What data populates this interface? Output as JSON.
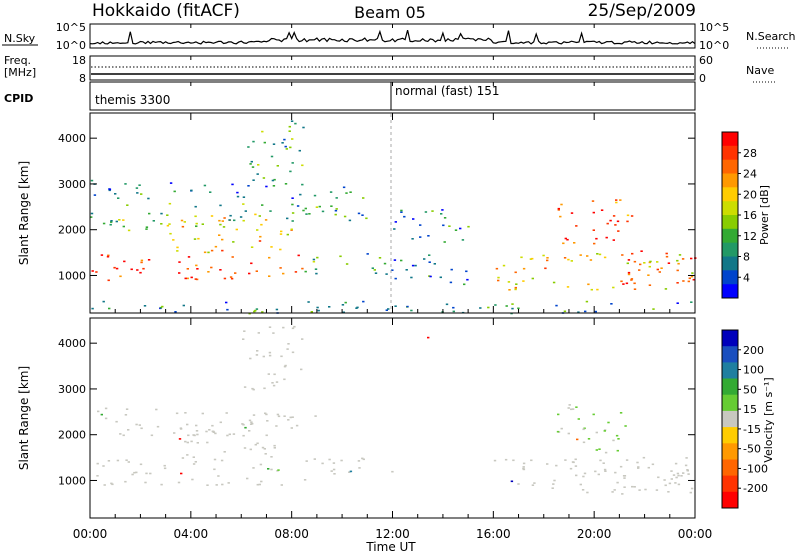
{
  "header": {
    "title_left": "Hokkaido (fitACF)",
    "title_center": "Beam 05",
    "title_right": "25/Sep/2009"
  },
  "panels": {
    "nsky": {
      "label": "N.Sky",
      "ticks_left": [
        "10^5",
        "10^0"
      ],
      "ticks_right": [
        "10^5",
        "10^0"
      ],
      "right_label": "N.Search"
    },
    "freq": {
      "label_line1": "Freq.",
      "label_line2": "[MHz]",
      "ticks_left": [
        "18",
        "8"
      ],
      "ticks_right": [
        "60",
        "0"
      ],
      "right_label": "Nave"
    },
    "cpid": {
      "label": "CPID",
      "segments": [
        "themis 3300",
        "normal (fast) 151"
      ]
    }
  },
  "colorbars": {
    "power": {
      "title": "Power [dB]",
      "ticks": [
        "28",
        "24",
        "20",
        "16",
        "12",
        "8",
        "4"
      ],
      "colors": [
        "#ff0000",
        "#ff3300",
        "#ff6600",
        "#ff9900",
        "#ffcc00",
        "#ccdd00",
        "#88cc00",
        "#33aa33",
        "#229966",
        "#117788",
        "#0044cc",
        "#0000ff"
      ]
    },
    "velocity": {
      "title": "Velocity [m s⁻¹]",
      "ticks": [
        "200",
        "100",
        "50",
        "15",
        "-15",
        "-50",
        "-100",
        "-200"
      ],
      "colors": [
        "#0000bb",
        "#1a4fbf",
        "#1f7fa0",
        "#33aa33",
        "#66cc33",
        "#c8c8c0",
        "#ffcc00",
        "#ff9900",
        "#ff6600",
        "#ff3300",
        "#ff0000"
      ]
    }
  },
  "axes": {
    "y_label": "Slant Range [km]",
    "y_ticks": [
      "4000",
      "3000",
      "2000",
      "1000"
    ],
    "x_label": "Time UT",
    "x_ticks": [
      "00:00",
      "04:00",
      "08:00",
      "12:00",
      "16:00",
      "20:00",
      "00:00"
    ]
  },
  "chart_data": [
    {
      "type": "heatmap",
      "title": "Hokkaido (fitACF) Beam 05 25/Sep/2009",
      "variable": "Power [dB]",
      "xlabel": "Time UT",
      "ylabel": "Slant Range [km]",
      "xlim": [
        0,
        24
      ],
      "ylim": [
        180,
        4550
      ],
      "zlim": [
        0,
        30
      ],
      "regions": [
        {
          "t": [
            0.0,
            8.5
          ],
          "r": [
            900,
            1500
          ],
          "power": 28
        },
        {
          "t": [
            3.0,
            8.0
          ],
          "r": [
            1500,
            2300
          ],
          "power": 20
        },
        {
          "t": [
            0.0,
            9.0
          ],
          "r": [
            2000,
            2600
          ],
          "power": 12
        },
        {
          "t": [
            0.0,
            8.0
          ],
          "r": [
            2700,
            3100
          ],
          "power": 6
        },
        {
          "t": [
            6.0,
            8.5
          ],
          "r": [
            3000,
            4400
          ],
          "power": 10
        },
        {
          "t": [
            8.5,
            12.0
          ],
          "r": [
            1000,
            1500
          ],
          "power": 10
        },
        {
          "t": [
            8.0,
            11.0
          ],
          "r": [
            2200,
            3000
          ],
          "power": 8
        },
        {
          "t": [
            12.0,
            15.0
          ],
          "r": [
            800,
            1500
          ],
          "power": 6
        },
        {
          "t": [
            12.0,
            15.0
          ],
          "r": [
            1700,
            2500
          ],
          "power": 6
        },
        {
          "t": [
            16.0,
            24.0
          ],
          "r": [
            700,
            1500
          ],
          "power": 20
        },
        {
          "t": [
            18.5,
            21.5
          ],
          "r": [
            1600,
            2700
          ],
          "power": 26
        },
        {
          "t": [
            21.0,
            24.0
          ],
          "r": [
            800,
            1600
          ],
          "power": 28
        },
        {
          "t": [
            0.0,
            24.0
          ],
          "r": [
            180,
            450
          ],
          "power": 8
        }
      ]
    },
    {
      "type": "heatmap",
      "variable": "Velocity [m s^-1]",
      "xlabel": "Time UT",
      "ylabel": "Slant Range [km]",
      "xlim": [
        0,
        24
      ],
      "ylim": [
        180,
        4550
      ],
      "zlim": [
        -200,
        200
      ],
      "regions": [
        {
          "t": [
            0.0,
            8.5
          ],
          "r": [
            900,
            1500
          ],
          "velocity": 0
        },
        {
          "t": [
            3.0,
            8.0
          ],
          "r": [
            1500,
            2300
          ],
          "velocity": 0
        },
        {
          "t": [
            0.0,
            9.0
          ],
          "r": [
            2000,
            2600
          ],
          "velocity": 0
        },
        {
          "t": [
            6.0,
            8.5
          ],
          "r": [
            3000,
            4400
          ],
          "velocity": 0
        },
        {
          "t": [
            8.5,
            12.0
          ],
          "r": [
            1000,
            1500
          ],
          "velocity": 0
        },
        {
          "t": [
            16.0,
            24.0
          ],
          "r": [
            700,
            1500
          ],
          "velocity": 0
        },
        {
          "t": [
            18.5,
            21.5
          ],
          "r": [
            1600,
            2700
          ],
          "velocity": 20
        },
        {
          "t": [
            21.0,
            24.0
          ],
          "r": [
            800,
            1600
          ],
          "velocity": 0
        },
        {
          "t": [
            13.0,
            13.5
          ],
          "r": [
            4100,
            4400
          ],
          "velocity": -200
        }
      ]
    }
  ]
}
